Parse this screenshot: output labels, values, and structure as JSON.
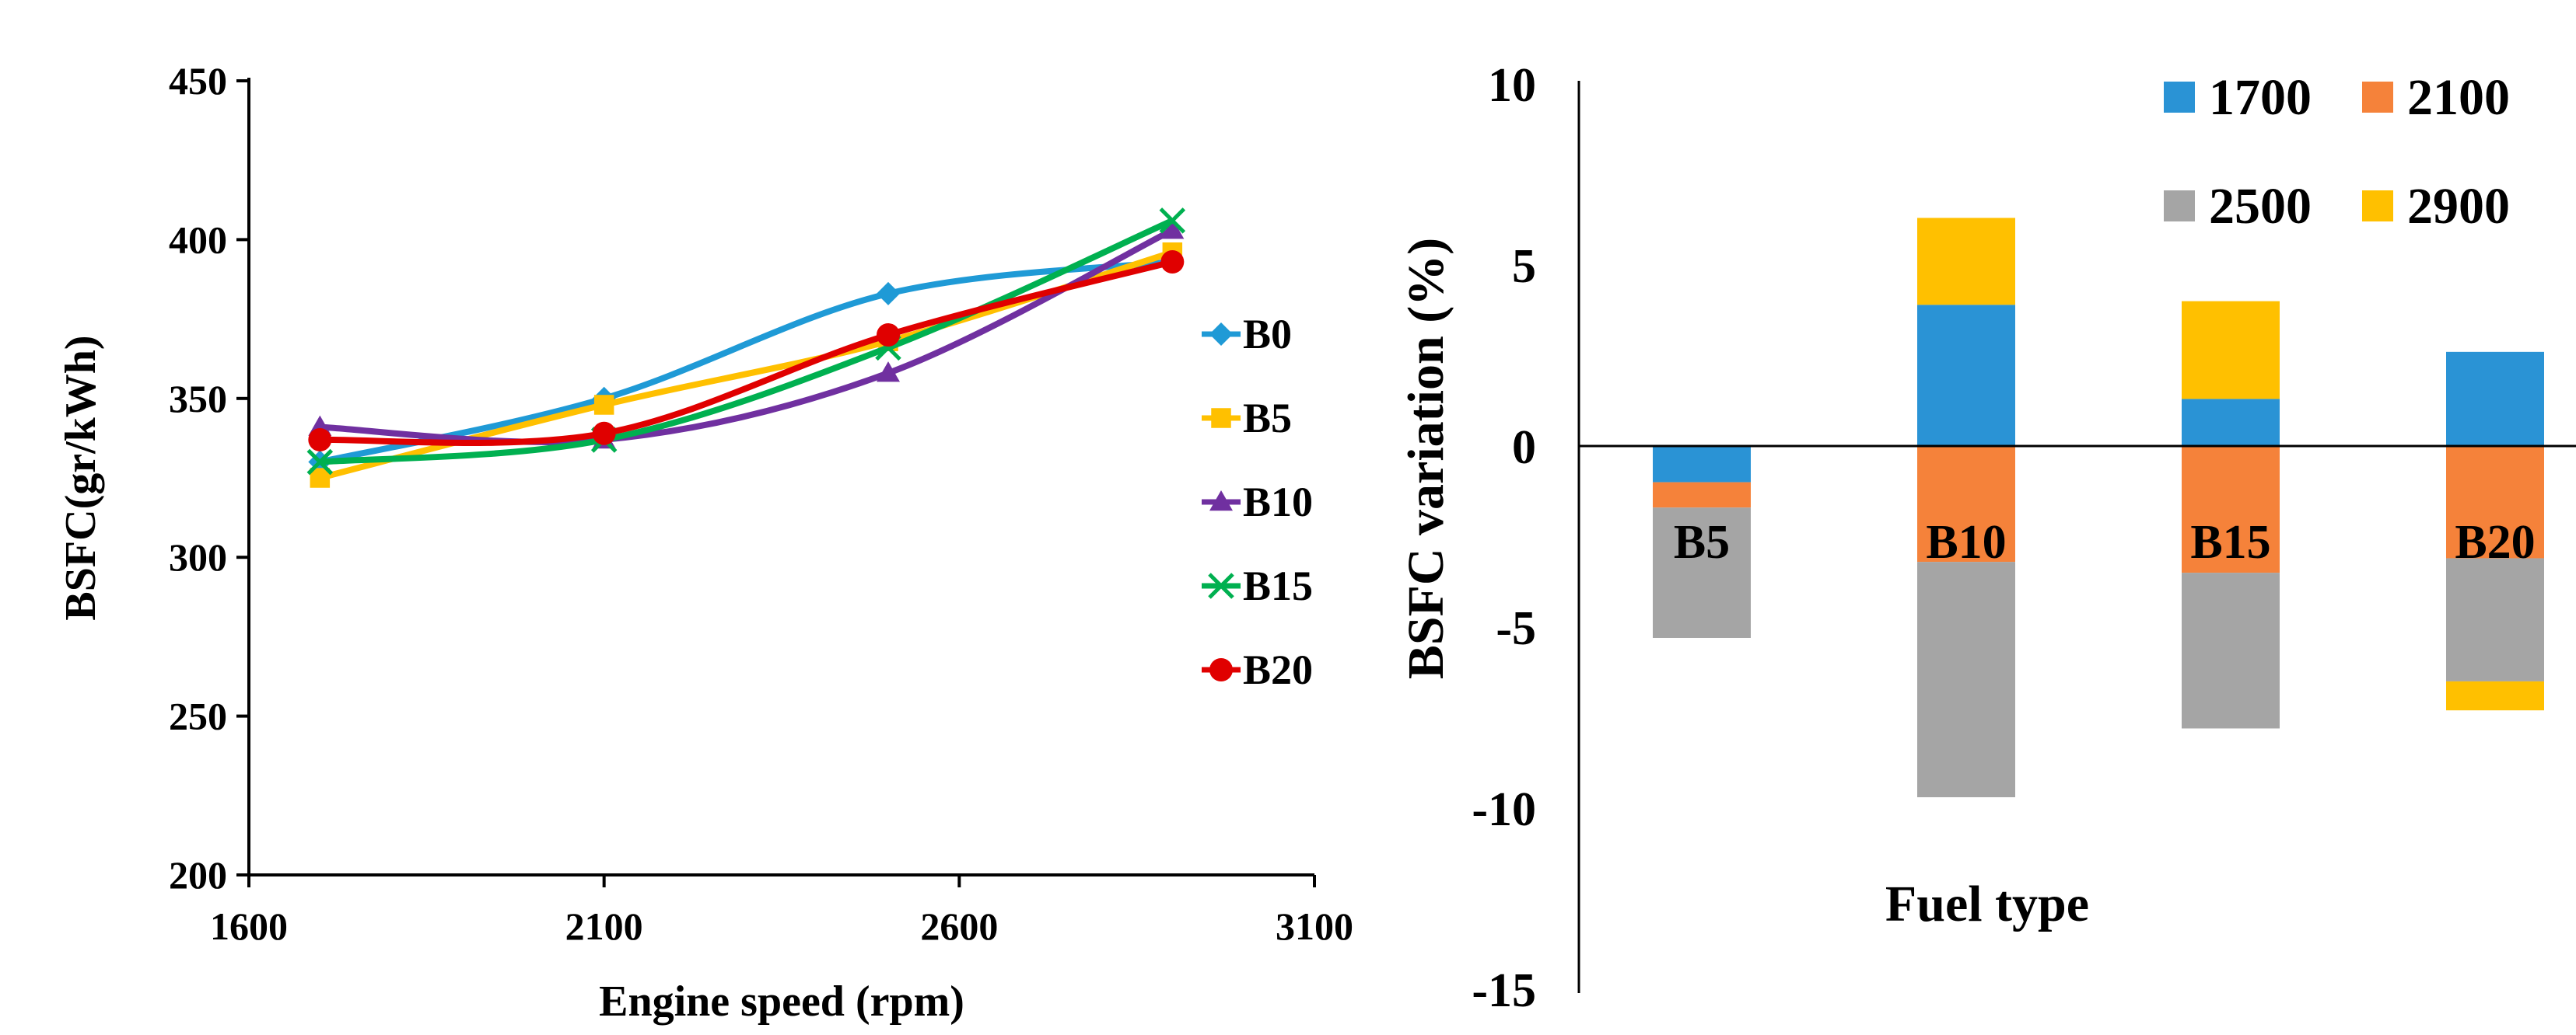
{
  "chart_data": [
    {
      "type": "line",
      "title": "",
      "xlabel": "Engine speed (rpm)",
      "ylabel": "BSFC(gr/kWh)",
      "xlim": [
        1600,
        3100
      ],
      "ylim": [
        200,
        450
      ],
      "xticks": [
        "1600",
        "2100",
        "2600",
        "3100"
      ],
      "yticks": [
        "200",
        "250",
        "300",
        "350",
        "400",
        "450"
      ],
      "x": [
        1700,
        2100,
        2500,
        2900
      ],
      "legend_position": "right",
      "grid": false,
      "series": [
        {
          "name": "B0",
          "color": "#1f9ad6",
          "marker": "diamond",
          "values": [
            330,
            350,
            383,
            393
          ]
        },
        {
          "name": "B5",
          "color": "#ffc000",
          "marker": "square",
          "values": [
            325,
            348,
            368,
            396
          ]
        },
        {
          "name": "B10",
          "color": "#7030a0",
          "marker": "triangle",
          "values": [
            341,
            337,
            358,
            403
          ]
        },
        {
          "name": "B15",
          "color": "#00b050",
          "marker": "x",
          "values": [
            330,
            337,
            366,
            406
          ]
        },
        {
          "name": "B20",
          "color": "#e00000",
          "marker": "circle",
          "values": [
            337,
            339,
            370,
            393
          ]
        }
      ]
    },
    {
      "type": "bar",
      "stacked": true,
      "title": "",
      "xlabel": "Fuel type",
      "ylabel": "BSFC variation (%)",
      "ylim": [
        -15,
        10
      ],
      "yticks": [
        "10",
        "5",
        "0",
        "-5",
        "-10",
        "-15"
      ],
      "categories": [
        "B5",
        "B10",
        "B15",
        "B20"
      ],
      "legend_position": "top-right",
      "grid": false,
      "series": [
        {
          "name": "1700",
          "color": "#2a93d5",
          "values": [
            -1.0,
            3.9,
            1.3,
            2.6
          ]
        },
        {
          "name": "2100",
          "color": "#f5823a",
          "values": [
            -0.7,
            -3.2,
            -3.5,
            -3.1
          ]
        },
        {
          "name": "2500",
          "color": "#a5a5a5",
          "values": [
            -3.6,
            -6.5,
            -4.3,
            -3.4
          ]
        },
        {
          "name": "2900",
          "color": "#ffc000",
          "values": [
            0,
            2.4,
            2.7,
            -0.8
          ]
        }
      ]
    }
  ]
}
